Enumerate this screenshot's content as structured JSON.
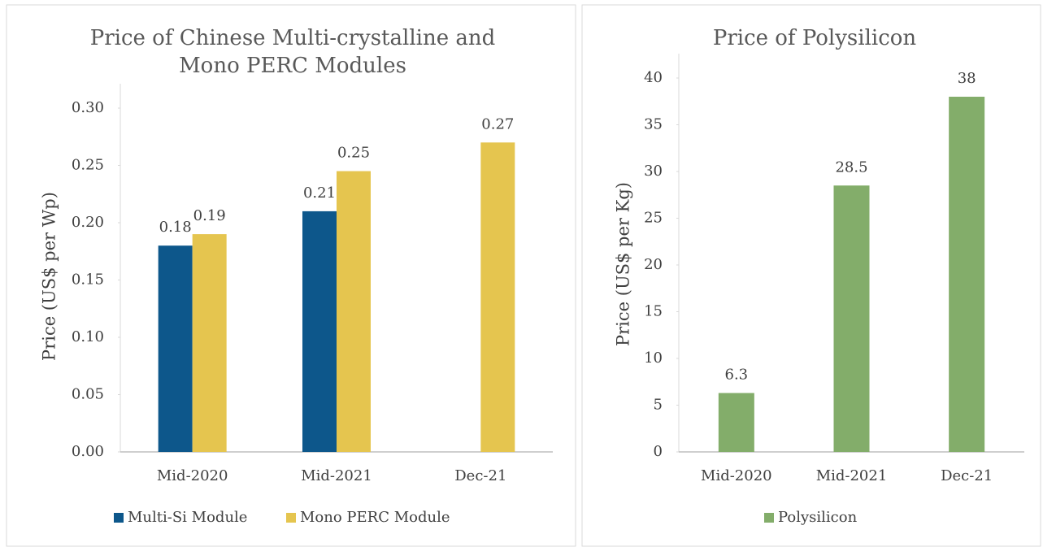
{
  "chart_data": [
    {
      "type": "bar",
      "title": "Price of Chinese Multi-crystalline and Mono PERC Modules",
      "y_label": "Price (US$ per Wp)",
      "categories": [
        "Mid-2020",
        "Mid-2021",
        "Dec-21"
      ],
      "series": [
        {
          "name": "Multi-Si Module",
          "color": "#0d578b",
          "values": [
            0.18,
            0.21,
            null
          ]
        },
        {
          "name": "Mono PERC Module",
          "color": "#e5c54f",
          "values": [
            0.19,
            0.245,
            0.27
          ],
          "value_labels": [
            "0.19",
            "0.25",
            "0.27"
          ]
        }
      ],
      "ylim": [
        0,
        0.3
      ],
      "yticks": [
        {
          "value": 0,
          "label": "0.00"
        },
        0.05,
        {
          "value": 0.1,
          "label": "0.10"
        },
        0.15,
        {
          "value": 0.2,
          "label": "0.20"
        },
        0.25,
        {
          "value": 0.3,
          "label": "0.30"
        }
      ],
      "legend": "bottom"
    },
    {
      "type": "bar",
      "title": "Price of Polysilicon",
      "y_label": "Price (US$ per Kg)",
      "categories": [
        "Mid-2020",
        "Mid-2021",
        "Dec-21"
      ],
      "series": [
        {
          "name": "Polysilicon",
          "color": "#83ad6a",
          "values": [
            6.3,
            28.5,
            38
          ]
        }
      ],
      "ylim": [
        0,
        40
      ],
      "yticks": [
        0,
        5,
        10,
        15,
        20,
        25,
        30,
        35,
        40
      ],
      "legend": "bottom"
    }
  ]
}
